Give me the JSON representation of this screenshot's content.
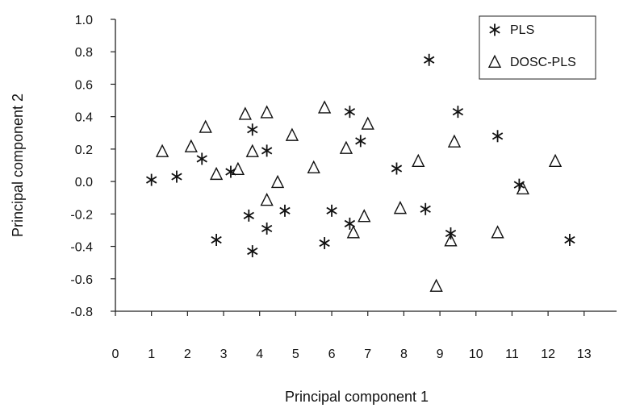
{
  "chart_data": {
    "type": "scatter",
    "title": "",
    "xlabel": "Principal  component 1",
    "ylabel": "Principal  component 2",
    "xlim": [
      0,
      13.9
    ],
    "ylim": [
      -0.8,
      1.0
    ],
    "x_tick_labels": [
      "0",
      "1",
      "2",
      "3",
      "4",
      "5",
      "6",
      "7",
      "8",
      "9",
      "10",
      "11",
      "12",
      "13"
    ],
    "y_tick_labels": [
      "1.0",
      "0.8",
      "0.6",
      "0.4",
      "0.2",
      "0.0",
      "-0.2",
      "-0.4",
      "-0.6",
      "-0.8"
    ],
    "grid": false,
    "legend_position": "top-right",
    "series": [
      {
        "name": "PLS",
        "marker": "asterisk",
        "points": [
          [
            1.0,
            0.01
          ],
          [
            1.7,
            0.03
          ],
          [
            2.4,
            0.14
          ],
          [
            2.8,
            -0.36
          ],
          [
            3.2,
            0.06
          ],
          [
            3.7,
            -0.21
          ],
          [
            3.8,
            0.32
          ],
          [
            3.8,
            -0.43
          ],
          [
            4.2,
            0.19
          ],
          [
            4.2,
            -0.29
          ],
          [
            4.7,
            -0.18
          ],
          [
            5.8,
            -0.38
          ],
          [
            6.0,
            -0.18
          ],
          [
            6.5,
            0.43
          ],
          [
            6.5,
            -0.26
          ],
          [
            6.8,
            0.25
          ],
          [
            7.8,
            0.08
          ],
          [
            8.6,
            -0.17
          ],
          [
            8.7,
            0.75
          ],
          [
            9.3,
            -0.32
          ],
          [
            9.5,
            0.43
          ],
          [
            10.6,
            0.28
          ],
          [
            11.2,
            -0.02
          ],
          [
            12.6,
            -0.36
          ]
        ]
      },
      {
        "name": "DOSC-PLS",
        "marker": "triangle",
        "points": [
          [
            1.3,
            0.18
          ],
          [
            2.1,
            0.21
          ],
          [
            2.5,
            0.33
          ],
          [
            2.8,
            0.04
          ],
          [
            3.4,
            0.07
          ],
          [
            3.6,
            0.41
          ],
          [
            3.8,
            0.18
          ],
          [
            4.2,
            0.42
          ],
          [
            4.2,
            -0.12
          ],
          [
            4.5,
            -0.01
          ],
          [
            4.9,
            0.28
          ],
          [
            5.5,
            0.08
          ],
          [
            5.8,
            0.45
          ],
          [
            6.4,
            0.2
          ],
          [
            6.6,
            -0.32
          ],
          [
            6.9,
            -0.22
          ],
          [
            7.0,
            0.35
          ],
          [
            7.9,
            -0.17
          ],
          [
            8.4,
            0.12
          ],
          [
            8.9,
            -0.65
          ],
          [
            9.3,
            -0.37
          ],
          [
            9.4,
            0.24
          ],
          [
            10.6,
            -0.32
          ],
          [
            11.3,
            -0.05
          ],
          [
            12.2,
            0.12
          ]
        ]
      }
    ]
  }
}
